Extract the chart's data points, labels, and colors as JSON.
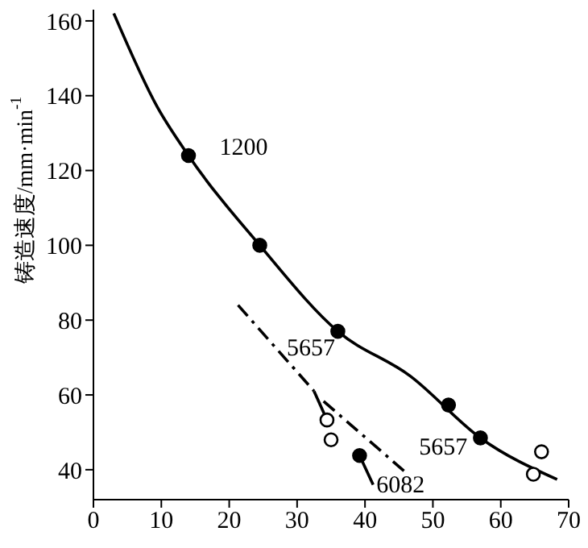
{
  "chart_data": {
    "type": "line",
    "ylabel": "铸造速度/mm·min$^{-1}$",
    "xlim": [
      0,
      70
    ],
    "xticks": [
      0,
      10,
      20,
      30,
      40,
      50,
      60,
      70
    ],
    "ylim": [
      32,
      163
    ],
    "yticks": [
      40,
      60,
      80,
      100,
      120,
      140,
      160
    ],
    "series": [
      {
        "name": "1200",
        "color": "#000000",
        "line_style": "solid",
        "marker": "none",
        "x": [
          3,
          9.4,
          14,
          24.5,
          36,
          46.7,
          57,
          68.3
        ],
        "values": [
          162,
          137,
          124,
          100,
          77,
          65,
          48.5,
          37.4
        ]
      },
      {
        "name": "5657",
        "color": "#000000",
        "line_style": "dashed",
        "marker": "none",
        "x": [
          21.3,
          32.5
        ],
        "values": [
          84,
          61
        ]
      },
      {
        "color": "#000000",
        "line_style": "solid",
        "marker": "none",
        "x": [
          32.5,
          34.4
        ],
        "values": [
          61,
          53.3
        ]
      },
      {
        "name": "5657",
        "color": "#000000",
        "line_style": "dashed",
        "marker": "none",
        "x": [
          33.9,
          46.3
        ],
        "values": [
          58.3,
          38.8
        ]
      },
      {
        "name": "6082",
        "color": "#000000",
        "line_style": "solid",
        "marker": "none",
        "x": [
          39.2,
          41.2
        ],
        "values": [
          43.8,
          36
        ]
      },
      {
        "type": "scatter",
        "color": "#000000",
        "marker": "circle",
        "x": [
          14,
          24.5,
          36,
          52.3,
          57,
          39.2
        ],
        "values": [
          124,
          100,
          77,
          57.3,
          48.5,
          43.8
        ]
      },
      {
        "type": "scatter",
        "color": "#ffffff",
        "marker": "circle",
        "x": [
          34.4,
          35,
          64.8,
          66
        ],
        "values": [
          53.3,
          48,
          38.8,
          44.8
        ]
      }
    ]
  }
}
